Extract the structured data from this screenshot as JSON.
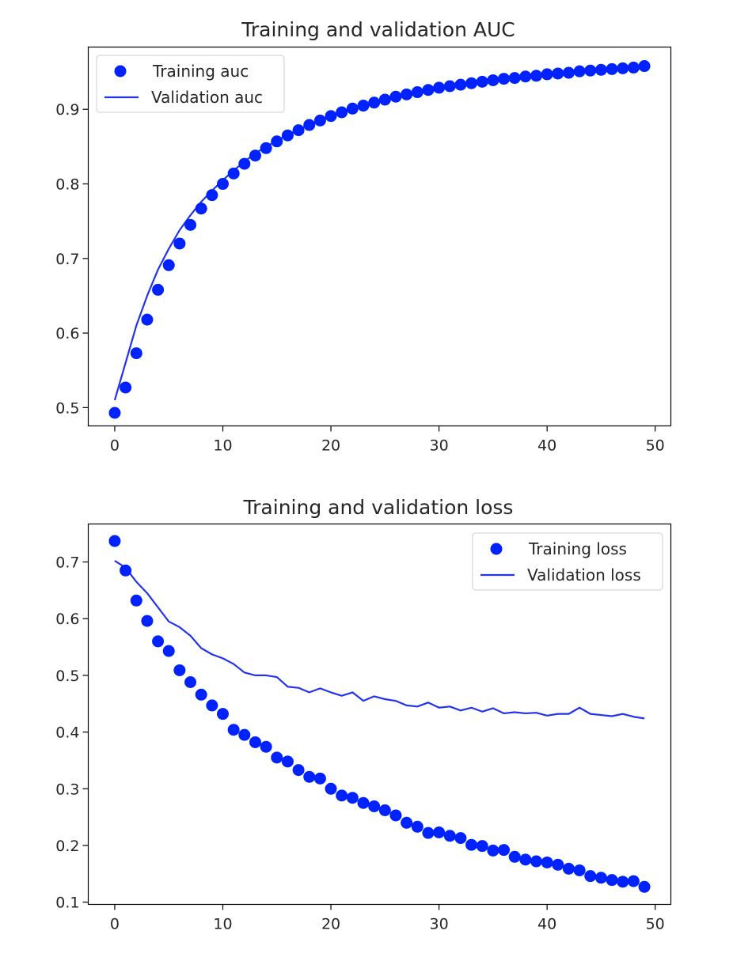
{
  "chart_data": [
    {
      "type": "line",
      "title": "Training and validation AUC",
      "xlabel": "",
      "ylabel": "",
      "xlim": [
        -2.45,
        51.45
      ],
      "ylim": [
        0.4755,
        0.9835
      ],
      "xticks": [
        0,
        10,
        20,
        30,
        40,
        50
      ],
      "yticks": [
        0.5,
        0.6,
        0.7,
        0.8,
        0.9
      ],
      "xtick_labels": [
        "0",
        "10",
        "20",
        "30",
        "40",
        "50"
      ],
      "ytick_labels": [
        "0.5",
        "0.6",
        "0.7",
        "0.8",
        "0.9"
      ],
      "grid": false,
      "legend_position": "upper left",
      "x": [
        0,
        1,
        2,
        3,
        4,
        5,
        6,
        7,
        8,
        9,
        10,
        11,
        12,
        13,
        14,
        15,
        16,
        17,
        18,
        19,
        20,
        21,
        22,
        23,
        24,
        25,
        26,
        27,
        28,
        29,
        30,
        31,
        32,
        33,
        34,
        35,
        36,
        37,
        38,
        39,
        40,
        41,
        42,
        43,
        44,
        45,
        46,
        47,
        48,
        49
      ],
      "series": [
        {
          "name": "Training auc",
          "style": "points",
          "color": "#0022ff",
          "values": [
            0.493,
            0.527,
            0.573,
            0.618,
            0.658,
            0.691,
            0.72,
            0.745,
            0.767,
            0.785,
            0.8,
            0.814,
            0.827,
            0.838,
            0.848,
            0.857,
            0.865,
            0.872,
            0.879,
            0.885,
            0.891,
            0.896,
            0.901,
            0.905,
            0.909,
            0.913,
            0.917,
            0.92,
            0.923,
            0.926,
            0.929,
            0.931,
            0.933,
            0.935,
            0.937,
            0.939,
            0.941,
            0.942,
            0.944,
            0.945,
            0.947,
            0.948,
            0.949,
            0.951,
            0.952,
            0.953,
            0.954,
            0.955,
            0.956,
            0.958
          ]
        },
        {
          "name": "Validation auc",
          "style": "line",
          "color": "#2233ee",
          "values": [
            0.51,
            0.56,
            0.61,
            0.65,
            0.685,
            0.713,
            0.738,
            0.758,
            0.776,
            0.791,
            0.805,
            0.818,
            0.83,
            0.841,
            0.85,
            0.858,
            0.866,
            0.873,
            0.879,
            0.885,
            0.89,
            0.895,
            0.9,
            0.904,
            0.908,
            0.911,
            0.915,
            0.918,
            0.921,
            0.924,
            0.926,
            0.929,
            0.931,
            0.933,
            0.935,
            0.937,
            0.939,
            0.94,
            0.942,
            0.943,
            0.945,
            0.946,
            0.947,
            0.949,
            0.95,
            0.951,
            0.952,
            0.953,
            0.954,
            0.955
          ]
        }
      ]
    },
    {
      "type": "line",
      "title": "Training and validation loss",
      "xlabel": "",
      "ylabel": "",
      "xlim": [
        -2.45,
        51.45
      ],
      "ylim": [
        0.096,
        0.767
      ],
      "xticks": [
        0,
        10,
        20,
        30,
        40,
        50
      ],
      "yticks": [
        0.1,
        0.2,
        0.3,
        0.4,
        0.5,
        0.6,
        0.7
      ],
      "xtick_labels": [
        "0",
        "10",
        "20",
        "30",
        "40",
        "50"
      ],
      "ytick_labels": [
        "0.1",
        "0.2",
        "0.3",
        "0.4",
        "0.5",
        "0.6",
        "0.7"
      ],
      "grid": false,
      "legend_position": "upper right",
      "x": [
        0,
        1,
        2,
        3,
        4,
        5,
        6,
        7,
        8,
        9,
        10,
        11,
        12,
        13,
        14,
        15,
        16,
        17,
        18,
        19,
        20,
        21,
        22,
        23,
        24,
        25,
        26,
        27,
        28,
        29,
        30,
        31,
        32,
        33,
        34,
        35,
        36,
        37,
        38,
        39,
        40,
        41,
        42,
        43,
        44,
        45,
        46,
        47,
        48,
        49
      ],
      "series": [
        {
          "name": "Training loss",
          "style": "points",
          "color": "#0022ff",
          "values": [
            0.737,
            0.685,
            0.632,
            0.596,
            0.56,
            0.543,
            0.509,
            0.488,
            0.466,
            0.447,
            0.432,
            0.404,
            0.395,
            0.382,
            0.374,
            0.355,
            0.348,
            0.333,
            0.321,
            0.318,
            0.3,
            0.288,
            0.284,
            0.275,
            0.269,
            0.262,
            0.253,
            0.24,
            0.233,
            0.222,
            0.223,
            0.217,
            0.213,
            0.201,
            0.199,
            0.191,
            0.192,
            0.18,
            0.175,
            0.172,
            0.17,
            0.166,
            0.159,
            0.156,
            0.146,
            0.143,
            0.139,
            0.136,
            0.137,
            0.127
          ]
        },
        {
          "name": "Validation loss",
          "style": "line",
          "color": "#2233ee",
          "values": [
            0.702,
            0.69,
            0.665,
            0.645,
            0.62,
            0.595,
            0.585,
            0.57,
            0.548,
            0.537,
            0.53,
            0.52,
            0.505,
            0.5,
            0.5,
            0.497,
            0.48,
            0.478,
            0.47,
            0.477,
            0.47,
            0.464,
            0.47,
            0.455,
            0.463,
            0.458,
            0.455,
            0.447,
            0.445,
            0.452,
            0.443,
            0.445,
            0.438,
            0.443,
            0.436,
            0.442,
            0.433,
            0.435,
            0.433,
            0.434,
            0.429,
            0.432,
            0.432,
            0.443,
            0.432,
            0.43,
            0.428,
            0.432,
            0.427,
            0.424
          ]
        }
      ]
    }
  ]
}
